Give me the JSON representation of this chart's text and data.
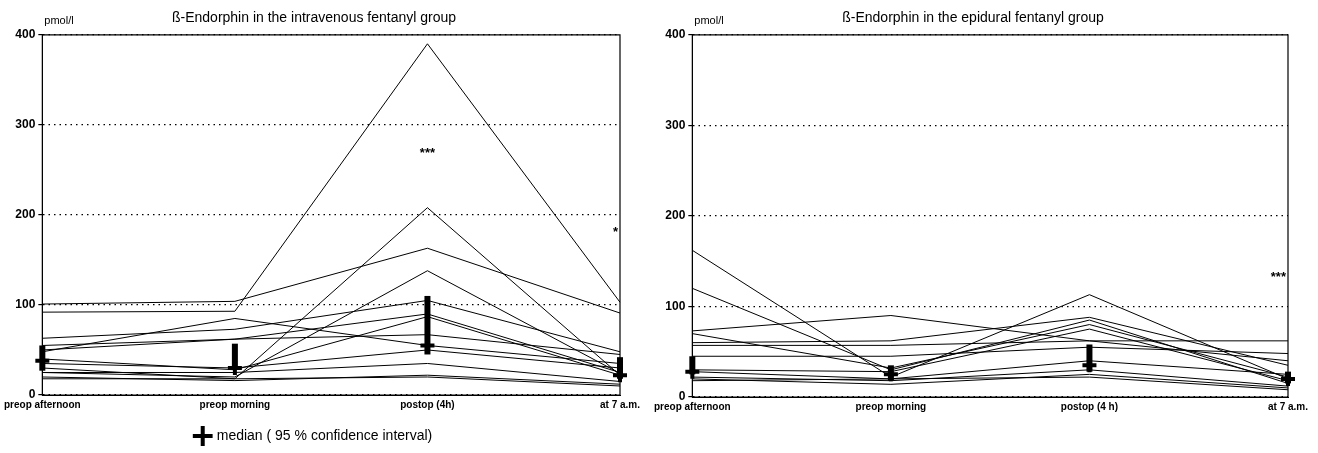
{
  "chart_data": [
    {
      "type": "line",
      "title": "ß-Endorphin in the intravenous fentanyl group",
      "ylabel": "pmol/l",
      "categories": [
        "preop afternoon",
        "preop morning",
        "postop (4h)",
        "at 7 a.m."
      ],
      "ylim": [
        0,
        400
      ],
      "yticks": [
        0,
        100,
        200,
        300,
        400
      ],
      "grid": "y",
      "legend": "bottom",
      "marker": "none",
      "annotations": [
        "***",
        "*"
      ],
      "series": [
        {
          "color": "#000000",
          "values": [
            92,
            93,
            390,
            103
          ]
        },
        {
          "color": "#000000",
          "values": [
            101,
            104,
            163,
            91
          ]
        },
        {
          "color": "#000000",
          "values": [
            30,
            18,
            208,
            22
          ]
        },
        {
          "color": "#000000",
          "values": [
            25,
            20,
            138,
            24
          ]
        },
        {
          "color": "#000000",
          "values": [
            48,
            85,
            55,
            35
          ]
        },
        {
          "color": "#000000",
          "values": [
            63,
            73,
            105,
            48
          ]
        },
        {
          "color": "#000000",
          "values": [
            50,
            62,
            90,
            25
          ]
        },
        {
          "color": "#000000",
          "values": [
            55,
            62,
            67,
            45
          ]
        },
        {
          "color": "#000000",
          "values": [
            40,
            28,
            87,
            22
          ]
        },
        {
          "color": "#000000",
          "values": [
            35,
            30,
            50,
            30
          ]
        },
        {
          "color": "#000000",
          "values": [
            25,
            25,
            35,
            15
          ]
        },
        {
          "color": "#000000",
          "values": [
            20,
            16,
            22,
            12
          ]
        },
        {
          "color": "#000000",
          "values": [
            18,
            18,
            20,
            10
          ]
        },
        {
          "type": "scatter",
          "name": "median ( 95 % confidence interval)",
          "color": "#000000",
          "marker": "cross",
          "x": [
            "preop afternoon",
            "preop morning",
            "postop (4h)",
            "at 7 a.m."
          ],
          "values": [
            38,
            30,
            55,
            22
          ],
          "errors": [
            [
              27,
              55
            ],
            [
              28,
              57
            ],
            [
              45,
              110
            ],
            [
              18,
              42
            ]
          ]
        }
      ]
    },
    {
      "type": "line",
      "title": "ß-Endorphin in the epidural fentanyl group",
      "ylabel": "pmol/l",
      "categories": [
        "preop afternoon",
        "preop morning",
        "postop (4 h)",
        "at 7 a.m."
      ],
      "ylim": [
        0,
        400
      ],
      "yticks": [
        0,
        100,
        200,
        300,
        400
      ],
      "grid": "y",
      "marker": "none",
      "annotations": [
        "***"
      ],
      "series": [
        {
          "color": "#000000",
          "values": [
            162,
            22,
            113,
            20
          ]
        },
        {
          "color": "#000000",
          "values": [
            120,
            30,
            85,
            15
          ]
        },
        {
          "color": "#000000",
          "values": [
            73,
            90,
            62,
            40
          ]
        },
        {
          "color": "#000000",
          "values": [
            70,
            32,
            80,
            22
          ]
        },
        {
          "color": "#000000",
          "values": [
            60,
            62,
            88,
            35
          ]
        },
        {
          "color": "#000000",
          "values": [
            57,
            57,
            62,
            62
          ]
        },
        {
          "color": "#000000",
          "values": [
            45,
            45,
            55,
            48
          ]
        },
        {
          "color": "#000000",
          "values": [
            30,
            28,
            75,
            18
          ]
        },
        {
          "color": "#000000",
          "values": [
            28,
            20,
            40,
            25
          ]
        },
        {
          "color": "#000000",
          "values": [
            22,
            18,
            30,
            12
          ]
        },
        {
          "color": "#000000",
          "values": [
            20,
            14,
            25,
            10
          ]
        },
        {
          "color": "#000000",
          "values": [
            18,
            20,
            22,
            8
          ]
        },
        {
          "type": "scatter",
          "color": "#000000",
          "marker": "cross",
          "x": [
            "preop afternoon",
            "preop morning",
            "postop (4 h)",
            "at 7 a.m."
          ],
          "values": [
            28,
            25,
            35,
            20
          ],
          "errors": [
            [
              25,
              45
            ],
            [
              18,
              35
            ],
            [
              28,
              58
            ],
            [
              15,
              28
            ]
          ]
        }
      ]
    }
  ]
}
